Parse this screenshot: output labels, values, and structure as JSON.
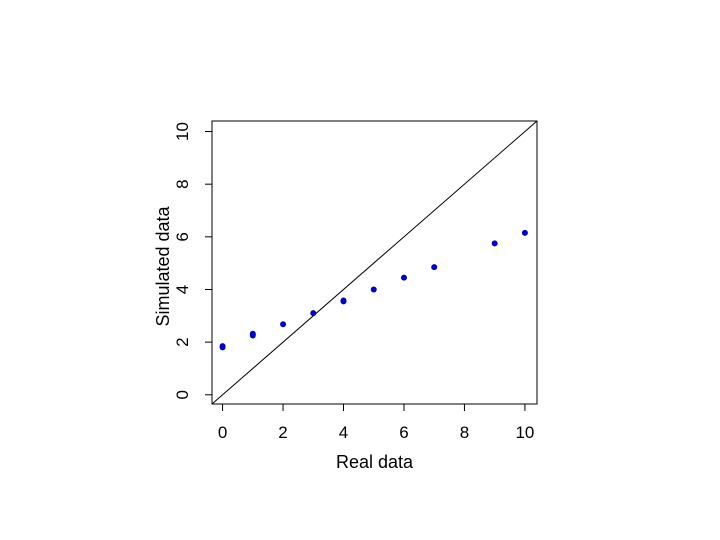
{
  "chart_data": {
    "type": "scatter",
    "title": "",
    "xlabel": "Real data",
    "ylabel": "Simulated data",
    "xlim": [
      -0.35,
      10.4
    ],
    "ylim": [
      -0.35,
      10.4
    ],
    "xticks": [
      0,
      2,
      4,
      6,
      8,
      10
    ],
    "yticks": [
      0,
      2,
      4,
      6,
      8,
      10
    ],
    "grid": false,
    "legend": "none",
    "point_color": "#0000cc",
    "reference_line": {
      "type": "identity",
      "from": [
        -0.35,
        -0.35
      ],
      "to": [
        10.4,
        10.4
      ]
    },
    "series": [
      {
        "x": [
          0,
          0,
          1,
          1,
          2,
          3,
          4,
          4,
          5,
          6,
          7,
          9,
          10
        ],
        "y": [
          1.8,
          1.85,
          2.25,
          2.32,
          2.68,
          3.1,
          3.55,
          3.58,
          4.0,
          4.45,
          4.85,
          5.75,
          6.15
        ]
      }
    ]
  }
}
